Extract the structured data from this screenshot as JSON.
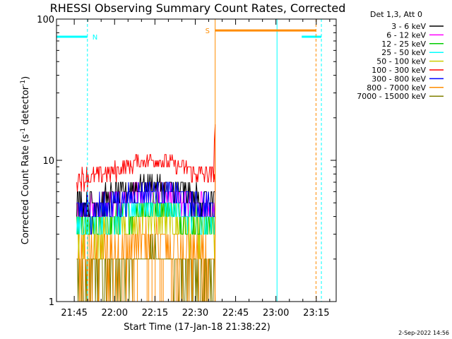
{
  "chart_data": {
    "type": "line",
    "title": "RHESSI Observing Summary Count Rates, Corrected",
    "xlabel": "Start Time (17-Jan-18 21:38:22)",
    "ylabel_main": "Corrected Count Rate (s",
    "ylabel_sup1": "-1",
    "ylabel_mid": " detector",
    "ylabel_sup2": "-1",
    "ylabel_end": ")",
    "yscale": "log",
    "ylim": [
      1,
      100
    ],
    "xlim_minutes_after_start": [
      0,
      104
    ],
    "x_ticks": [
      {
        "label": "21:45",
        "minutes": 6.6
      },
      {
        "label": "22:00",
        "minutes": 21.6
      },
      {
        "label": "22:15",
        "minutes": 36.6
      },
      {
        "label": "22:30",
        "minutes": 51.6
      },
      {
        "label": "22:45",
        "minutes": 66.6
      },
      {
        "label": "23:00",
        "minutes": 81.6
      },
      {
        "label": "23:15",
        "minutes": 96.6
      }
    ],
    "y_ticks": [
      {
        "label": "1",
        "value": 1
      },
      {
        "label": "10",
        "value": 10
      },
      {
        "label": "100",
        "value": 100
      }
    ],
    "legend_title": "Det 1,3, Att 0",
    "legend_position": "top-right, outside plot",
    "series": [
      {
        "name": "3 - 6 keV",
        "color": "#000000",
        "level": 5.0,
        "spread": 1.2
      },
      {
        "name": "6 - 12 keV",
        "color": "#ff00ff",
        "level": 4.5,
        "spread": 1.0
      },
      {
        "name": "12 - 25 keV",
        "color": "#00cc00",
        "level": 3.5,
        "spread": 1.0
      },
      {
        "name": "25 - 50 keV",
        "color": "#00ffff",
        "level": 3.5,
        "spread": 0.8
      },
      {
        "name": "50 - 100 keV",
        "color": "#cccc00",
        "level": 3.0,
        "spread": 1.0
      },
      {
        "name": "100 - 300 keV",
        "color": "#ff0000",
        "level": 7.5,
        "spread": 1.2
      },
      {
        "name": "300 - 800 keV",
        "color": "#0000ff",
        "level": 4.5,
        "spread": 1.2
      },
      {
        "name": "800 - 7000 keV",
        "color": "#ff8c00",
        "level": 2.0,
        "spread": 1.0
      },
      {
        "name": "7000 - 15000 keV",
        "color": "#808000",
        "level": 1.5,
        "spread": 0.5
      }
    ],
    "data_window_minutes": [
      7.5,
      59.0
    ],
    "cyan_night_markers_minutes": [
      0,
      11.5,
      82.0,
      98.5
    ],
    "orange_saa_markers_minutes": [
      59.0,
      96.5
    ],
    "night_label": "N",
    "saa_label": "S",
    "night_bar_level": 75,
    "saa_bar_level": 83,
    "timestamp": "2-Sep-2022 14:56"
  }
}
